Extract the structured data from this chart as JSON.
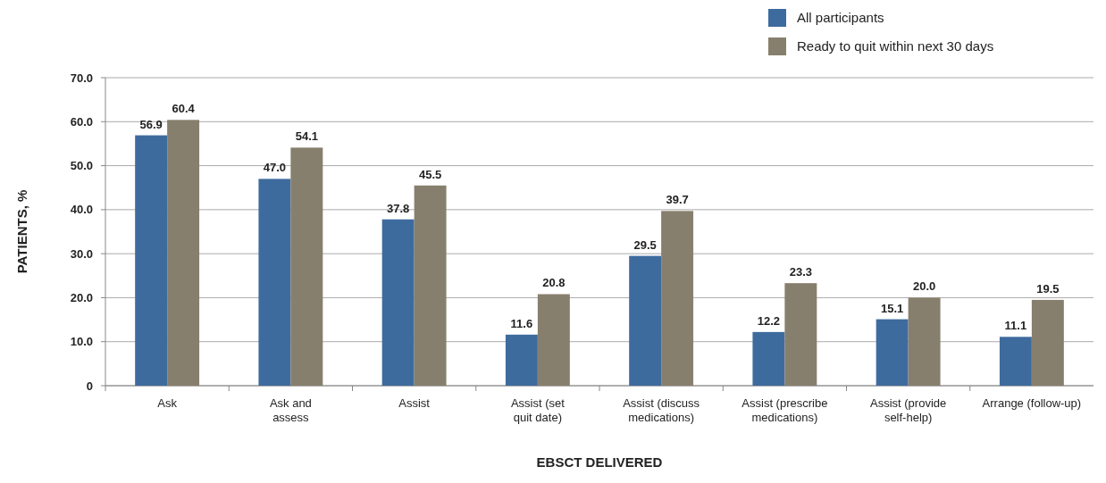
{
  "chart_data": {
    "type": "bar",
    "xlabel": "EBSCT DELIVERED",
    "ylabel": "PATIENTS, %",
    "categories": [
      "Ask",
      "Ask and\nassess",
      "Assist",
      "Assist (set\nquit date)",
      "Assist (discuss\nmedications)",
      "Assist (prescribe\nmedications)",
      "Assist (provide\nself-help)",
      "Arrange (follow-up)"
    ],
    "series": [
      {
        "name": "All participants",
        "color": "#3e6b9e",
        "values": [
          56.9,
          47.0,
          37.8,
          11.6,
          29.5,
          12.2,
          15.1,
          11.1
        ],
        "value_labels": [
          "56.9",
          "47.0",
          "37.8",
          "11.6",
          "29.5",
          "12.2",
          "15.1",
          "11.1"
        ]
      },
      {
        "name": "Ready to quit within next 30 days",
        "color": "#877f6d",
        "values": [
          60.4,
          54.1,
          45.5,
          20.8,
          39.7,
          23.3,
          20.0,
          19.5
        ],
        "value_labels": [
          "60.4",
          "54.1",
          "45.5",
          "20.8",
          "39.7",
          "23.3",
          "20.0",
          "19.5"
        ]
      }
    ],
    "ylim": [
      0,
      70
    ],
    "yticks": [
      {
        "value": 0,
        "label": "0"
      },
      {
        "value": 10,
        "label": "10.0"
      },
      {
        "value": 20,
        "label": "20.0"
      },
      {
        "value": 30,
        "label": "30.0"
      },
      {
        "value": 40,
        "label": "40.0"
      },
      {
        "value": 50,
        "label": "50.0"
      },
      {
        "value": 60,
        "label": "60.0"
      },
      {
        "value": 70,
        "label": "70.0"
      }
    ],
    "grid": "y",
    "legend": "top right"
  }
}
